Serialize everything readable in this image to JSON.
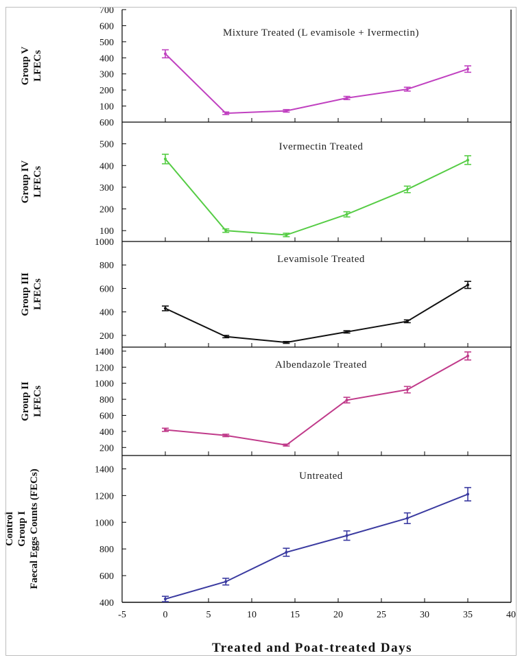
{
  "chart_data": {
    "type": "line",
    "xlabel": "Treated and Poat-treated Days",
    "x_ticks": [
      "-5",
      "0",
      "5",
      "10",
      "15",
      "20",
      "25",
      "30",
      "35",
      "40"
    ],
    "xlim": [
      -5,
      40
    ],
    "panels": [
      {
        "title": "Mixture Treated (L evamisole + Ivermectin)",
        "ylabel_lines": [
          "Group V",
          "LFECs"
        ],
        "color": "#c040c0",
        "ylim": [
          0,
          700
        ],
        "y_ticks": [
          100,
          200,
          300,
          400,
          500,
          600,
          700
        ],
        "x": [
          0,
          7,
          14,
          21,
          28,
          35
        ],
        "values": [
          425,
          55,
          70,
          150,
          205,
          330
        ],
        "errors": [
          25,
          8,
          8,
          10,
          12,
          20
        ]
      },
      {
        "title": "Ivermectin Treated",
        "ylabel_lines": [
          "Group IV",
          "LFECs"
        ],
        "color": "#55cc44",
        "ylim": [
          50,
          600
        ],
        "y_ticks": [
          100,
          200,
          300,
          400,
          500,
          600
        ],
        "x": [
          0,
          7,
          14,
          21,
          28,
          35
        ],
        "values": [
          430,
          100,
          80,
          175,
          290,
          425
        ],
        "errors": [
          22,
          8,
          8,
          12,
          15,
          20
        ]
      },
      {
        "title": "Levamisole Treated",
        "ylabel_lines": [
          "Group III",
          "LFECs"
        ],
        "color": "#111111",
        "ylim": [
          100,
          1000
        ],
        "y_ticks": [
          200,
          400,
          600,
          800,
          1000
        ],
        "x": [
          0,
          7,
          14,
          21,
          28,
          35
        ],
        "values": [
          430,
          190,
          140,
          230,
          320,
          630
        ],
        "errors": [
          20,
          10,
          8,
          10,
          12,
          30
        ]
      },
      {
        "title": "Albendazole Treated",
        "ylabel_lines": [
          "Group II",
          "LFECs"
        ],
        "color": "#c03a8a",
        "ylim": [
          100,
          1450
        ],
        "y_ticks": [
          200,
          400,
          600,
          800,
          1000,
          1200,
          1400
        ],
        "x": [
          0,
          7,
          14,
          21,
          28,
          35
        ],
        "values": [
          420,
          350,
          230,
          790,
          920,
          1340
        ],
        "errors": [
          20,
          15,
          12,
          35,
          40,
          50
        ]
      },
      {
        "title": "Untreated",
        "ylabel_lines": [
          "Control",
          "Group I",
          "Faecal Eggs Counts (FECs)"
        ],
        "color": "#3a3aa0",
        "ylim": [
          400,
          1500
        ],
        "y_ticks": [
          400,
          600,
          800,
          1000,
          1200,
          1400
        ],
        "x": [
          0,
          7,
          14,
          21,
          28,
          35
        ],
        "values": [
          425,
          555,
          775,
          900,
          1030,
          1210
        ],
        "errors": [
          20,
          25,
          30,
          35,
          40,
          50
        ]
      }
    ]
  }
}
